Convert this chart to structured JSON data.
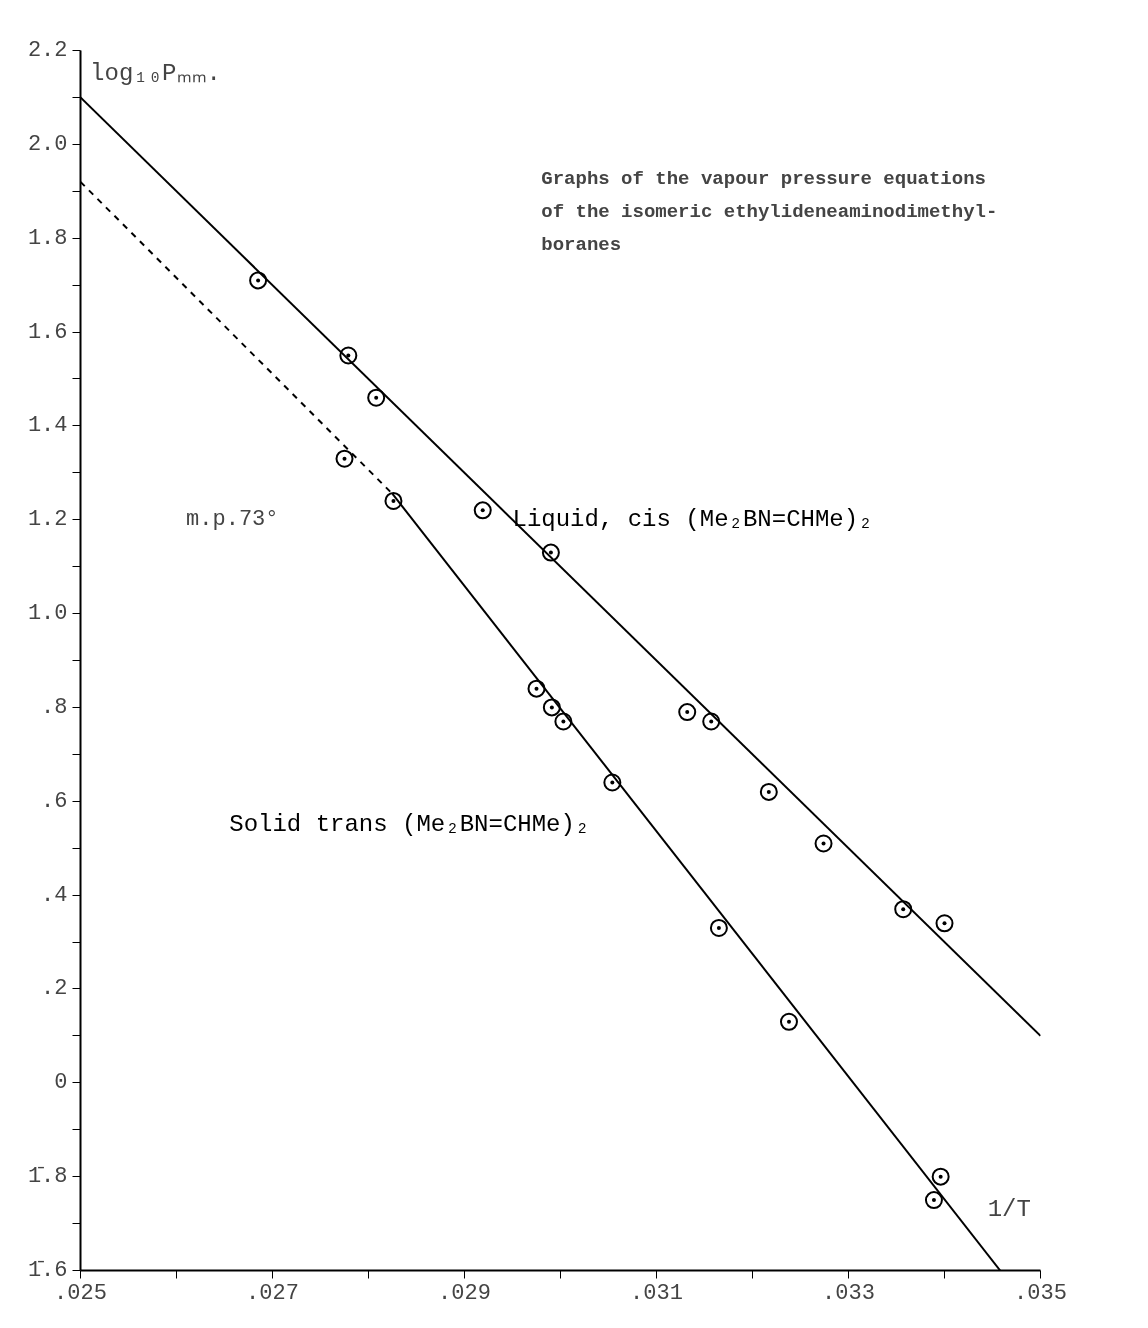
{
  "chart_data": {
    "type": "scatter",
    "title": "Graphs of the vapour pressure equations of the isomeric ethylideneaminodimethyl-boranes",
    "ylabel": "log₁₀Pₘₘ.",
    "xlabel": "1/T",
    "annotations": [
      "m.p.73°"
    ],
    "xlim": [
      0.025,
      0.035
    ],
    "ylim": [
      -0.4,
      2.2
    ],
    "xticks": [
      {
        "value": 0.025,
        "label": ".025"
      },
      {
        "value": 0.026,
        "label": null
      },
      {
        "value": 0.027,
        "label": ".027"
      },
      {
        "value": 0.028,
        "label": null
      },
      {
        "value": 0.029,
        "label": ".029"
      },
      {
        "value": 0.03,
        "label": null
      },
      {
        "value": 0.031,
        "label": ".031"
      },
      {
        "value": 0.032,
        "label": null
      },
      {
        "value": 0.033,
        "label": ".033"
      },
      {
        "value": 0.034,
        "label": null
      },
      {
        "value": 0.035,
        "label": ".035"
      }
    ],
    "yticks": [
      {
        "value": -0.4,
        "label": "1̄.6"
      },
      {
        "value": -0.3,
        "label": null
      },
      {
        "value": -0.2,
        "label": "1̄.8"
      },
      {
        "value": -0.1,
        "label": null
      },
      0,
      {
        "value": 0.1,
        "label": null
      },
      {
        "value": 0.2,
        "label": ".2"
      },
      {
        "value": 0.3,
        "label": null
      },
      {
        "value": 0.4,
        "label": ".4"
      },
      {
        "value": 0.5,
        "label": null
      },
      {
        "value": 0.6,
        "label": ".6"
      },
      {
        "value": 0.7,
        "label": null
      },
      {
        "value": 0.8,
        "label": ".8"
      },
      {
        "value": 0.9,
        "label": null
      },
      {
        "value": 1.0,
        "label": "1.0"
      },
      {
        "value": 1.1,
        "label": null
      },
      1.2,
      {
        "value": 1.3,
        "label": null
      },
      1.4,
      {
        "value": 1.5,
        "label": null
      },
      1.6,
      {
        "value": 1.7,
        "label": null
      },
      1.8,
      {
        "value": 1.9,
        "label": null
      },
      {
        "value": 2.0,
        "label": "2.0"
      },
      {
        "value": 2.1,
        "label": null
      },
      2.2
    ],
    "grid": false,
    "series": [
      {
        "marker": "circle",
        "color": "#000000",
        "x": [
          0.02685,
          0.02779,
          0.02808,
          0.02919,
          0.0299,
          0.03132,
          0.03157,
          0.03217,
          0.03274,
          0.03357,
          0.034
        ],
        "values": [
          1.71,
          1.55,
          1.46,
          1.22,
          1.13,
          0.79,
          0.77,
          0.62,
          0.51,
          0.37,
          0.34
        ]
      },
      {
        "marker": "circle",
        "color": "#000000",
        "x": [
          0.02775,
          0.02826,
          0.02975,
          0.02991,
          0.03003,
          0.03054,
          0.03165,
          0.03238,
          0.03389,
          0.03396
        ],
        "values": [
          1.33,
          1.24,
          0.84,
          0.8,
          0.77,
          0.64,
          0.33,
          0.13,
          -0.25,
          -0.2
        ]
      },
      {
        "type": "line",
        "name": "Liquid, cis (Me₂BN=CHMe)₂",
        "line_style": "solid",
        "color": "#000000",
        "x": [
          0.025,
          0.035
        ],
        "values": [
          2.1,
          0.1
        ]
      },
      {
        "type": "line",
        "name": "Solid trans (Me₂BN=CHMe)₂",
        "line_style": "solid",
        "color": "#000000",
        "x": [
          0.02825,
          0.03458
        ],
        "values": [
          1.255,
          -0.4
        ]
      },
      {
        "type": "line",
        "line_style": "dashed",
        "color": "#000000",
        "x": [
          0.025,
          0.02825
        ],
        "values": [
          1.92,
          1.255
        ]
      }
    ]
  }
}
